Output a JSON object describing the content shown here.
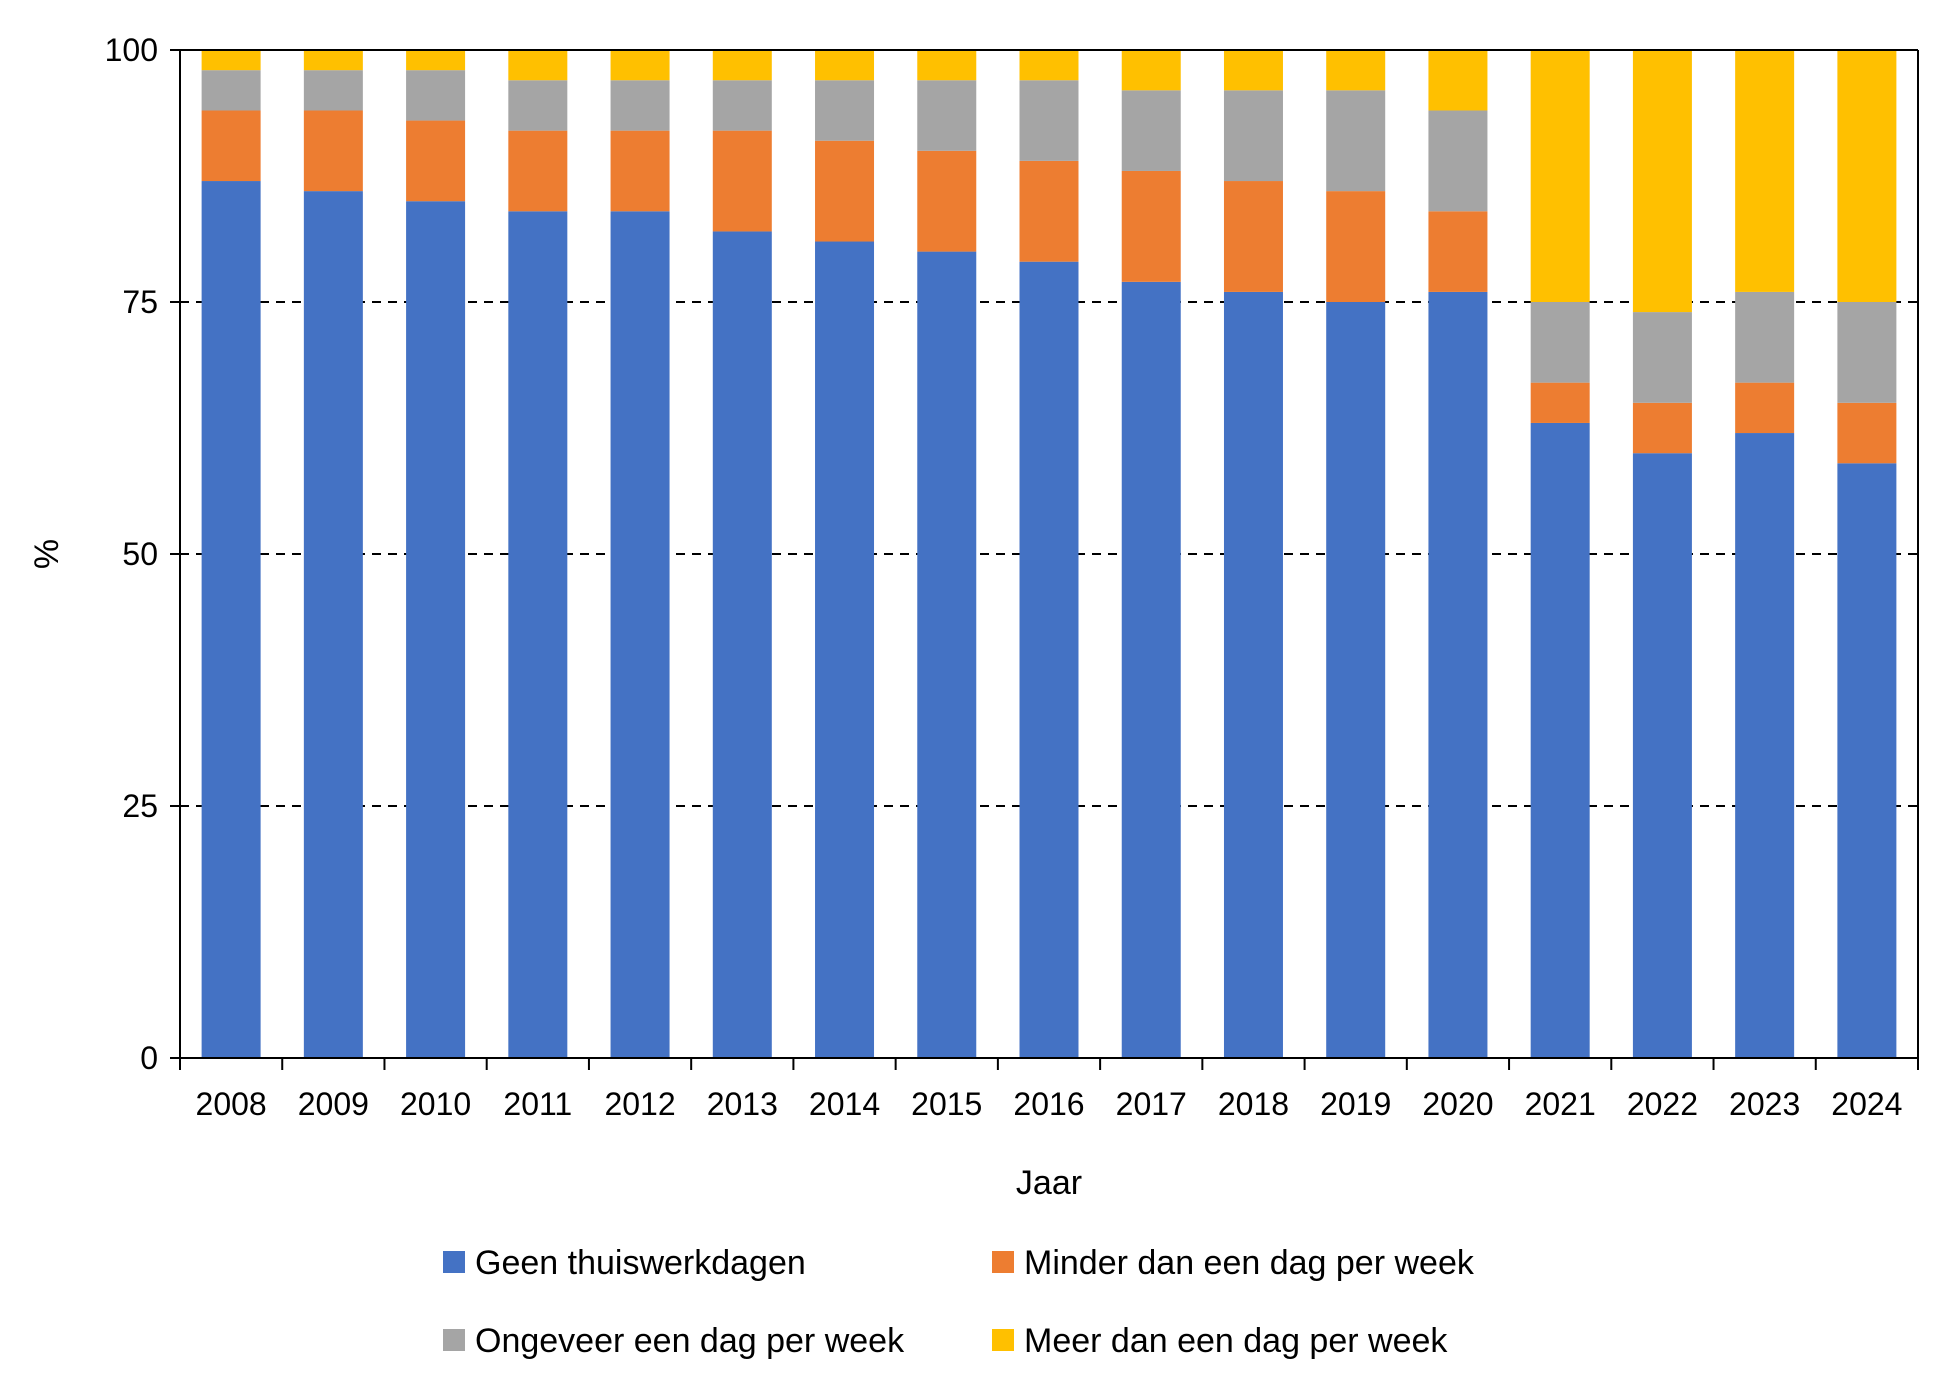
{
  "chart_data": {
    "type": "bar",
    "stacked": true,
    "xlabel": "Jaar",
    "ylabel": "%",
    "ylim": [
      0,
      100
    ],
    "yticks": [
      0,
      25,
      50,
      75,
      100
    ],
    "grid": "horizontal dashed at 25, 50, 75",
    "legend_position": "bottom",
    "categories": [
      "2008",
      "2009",
      "2010",
      "2011",
      "2012",
      "2013",
      "2014",
      "2015",
      "2016",
      "2017",
      "2018",
      "2019",
      "2020",
      "2021",
      "2022",
      "2023",
      "2024"
    ],
    "series": [
      {
        "name": "Geen thuiswerkdagen",
        "color": "#4472C4",
        "values": [
          87,
          86,
          85,
          84,
          84,
          82,
          81,
          80,
          79,
          77,
          76,
          75,
          76,
          63,
          60,
          62,
          59
        ]
      },
      {
        "name": "Minder dan een dag per week",
        "color": "#ED7D31",
        "values": [
          7,
          8,
          8,
          8,
          8,
          10,
          10,
          10,
          10,
          11,
          11,
          11,
          8,
          4,
          5,
          5,
          6
        ]
      },
      {
        "name": "Ongeveer een dag per week",
        "color": "#A5A5A5",
        "values": [
          4,
          4,
          5,
          5,
          5,
          5,
          6,
          7,
          8,
          8,
          9,
          10,
          10,
          8,
          9,
          9,
          10
        ]
      },
      {
        "name": "Meer dan een dag per week",
        "color": "#FFC000",
        "values": [
          2,
          2,
          2,
          3,
          3,
          3,
          3,
          3,
          3,
          4,
          4,
          4,
          6,
          25,
          26,
          24,
          25
        ]
      }
    ]
  }
}
